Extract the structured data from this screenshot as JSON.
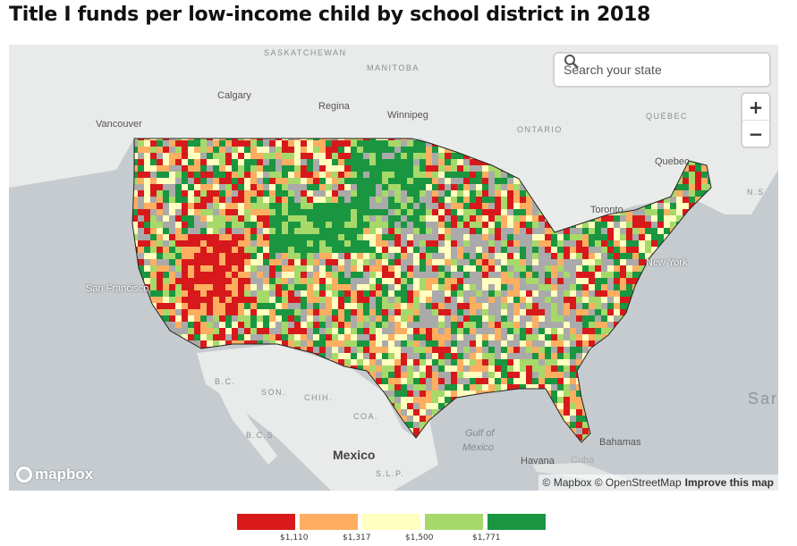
{
  "title": "Title I funds per low-income child by school district in 2018",
  "search": {
    "placeholder": "Search your state"
  },
  "zoom": {
    "in": "+",
    "out": "−"
  },
  "attribution": {
    "text": "© Mapbox © OpenStreetMap",
    "improve": "Improve this map"
  },
  "logo": "mapbox",
  "map_labels": {
    "saskatchewan": "SASKATCHEWAN",
    "manitoba": "MANITOBA",
    "calgary": "Calgary",
    "regina": "Regina",
    "winnipeg": "Winnipeg",
    "vancouver": "Vancouver",
    "ontario": "ONTARIO",
    "quebec_prov": "QUÉBEC",
    "quebec_city": "Quebec",
    "toronto": "Toronto",
    "new_york": "New York",
    "san_francisco": "San Francisco",
    "ns": "N.S",
    "bc": "B.C.",
    "son": "SON.",
    "chih": "CHIH.",
    "coa": "COA.",
    "bcs": "B.C.S",
    "mexico": "Mexico",
    "slp": "S.L.P.",
    "gulf1": "Gulf of",
    "gulf2": "Mexico",
    "havana": "Havana",
    "bahamas": "Bahamas",
    "cuba": "Cuba",
    "sargasso": "Sar"
  },
  "legend": {
    "colors": [
      "#d7191c",
      "#fdae61",
      "#ffffbf",
      "#a6d96a",
      "#1a9641"
    ],
    "breaks": [
      "$1,110",
      "$1,317",
      "$1,500",
      "$1,771"
    ],
    "nodata": "#aaaaaa"
  }
}
